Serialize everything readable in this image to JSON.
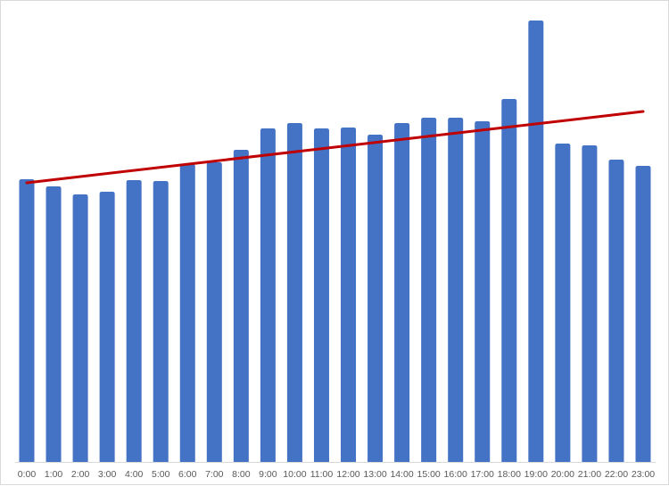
{
  "chart_data": {
    "type": "bar",
    "title": "",
    "xlabel": "",
    "ylabel": "",
    "categories": [
      "0:00",
      "1:00",
      "2:00",
      "3:00",
      "4:00",
      "5:00",
      "6:00",
      "7:00",
      "8:00",
      "9:00",
      "10:00",
      "11:00",
      "12:00",
      "13:00",
      "14:00",
      "15:00",
      "16:00",
      "17:00",
      "18:00",
      "19:00",
      "20:00",
      "21:00",
      "22:00",
      "23:00"
    ],
    "values": [
      317,
      309,
      300,
      303,
      316,
      315,
      334,
      336,
      350,
      374,
      380,
      374,
      375,
      367,
      380,
      386,
      386,
      382,
      407,
      495,
      357,
      355,
      339,
      332
    ],
    "ylim": [
      0,
      500
    ],
    "grid": false,
    "legend": "none",
    "trendline": {
      "type": "linear",
      "start": 313,
      "end": 393,
      "color": "#c00000"
    },
    "bar_color": "#4472c4"
  }
}
